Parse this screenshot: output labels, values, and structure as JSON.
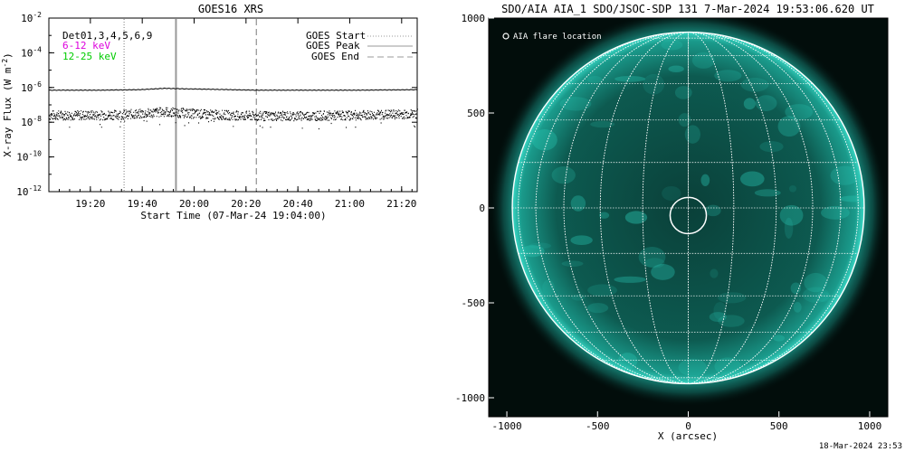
{
  "colors": {
    "background": "#ffffff",
    "axis": "#000000",
    "flux_high": "#000000",
    "legend_6_12": "#dd00dd",
    "legend_12_25": "#00cc00",
    "marker_lines": "#999999",
    "sun_dark": "#020d0b",
    "sun_cyan": "#1fb7a6",
    "grid_white": "#ffffff"
  },
  "chart_data": [
    {
      "type": "line",
      "title": "GOES16 XRS",
      "ylabel": "X-ray Flux (W m",
      "ylabel_exp": "-2",
      "ylabel_close": ")",
      "xlabel": "Start Time (07-Mar-24 19:04:00)",
      "yscale": "log",
      "ylim": [
        1e-12,
        0.01
      ],
      "xlim_minutes_after_start": [
        0,
        142
      ],
      "y_tick_labels": [
        {
          "base": "10",
          "exp": "-2",
          "value": 0.01
        },
        {
          "base": "10",
          "exp": "-4",
          "value": 0.0001
        },
        {
          "base": "10",
          "exp": "-6",
          "value": 1e-06
        },
        {
          "base": "10",
          "exp": "-8",
          "value": 1e-08
        },
        {
          "base": "10",
          "exp": "-10",
          "value": 1e-10
        },
        {
          "base": "10",
          "exp": "-12",
          "value": 1e-12
        }
      ],
      "x_tick_labels": [
        "19:20",
        "19:40",
        "20:00",
        "20:20",
        "20:40",
        "21:00",
        "21:20"
      ],
      "x_ticks_minutes_after_start": [
        16,
        36,
        56,
        76,
        96,
        116,
        136
      ],
      "series_labels": [
        "Det01,3,4,5,6,9",
        "6-12 keV",
        "12-25 keV"
      ],
      "series": [
        {
          "name": "Det01,3,4,5,6,9",
          "x_minutes": [
            0,
            20,
            35,
            45,
            50,
            60,
            70,
            80,
            100,
            120,
            142
          ],
          "y": [
            7e-07,
            7e-07,
            7.5e-07,
            9e-07,
            8.5e-07,
            8e-07,
            7.5e-07,
            7e-07,
            7e-07,
            7e-07,
            7.5e-07
          ]
        },
        {
          "name": "6-12 keV",
          "x_minutes": [
            0,
            20,
            35,
            45,
            50,
            60,
            70,
            80,
            100,
            120,
            142
          ],
          "y": [
            2.5e-08,
            2.5e-08,
            3e-08,
            4e-08,
            3.5e-08,
            2.8e-08,
            2.5e-08,
            2.2e-08,
            2.3e-08,
            2.5e-08,
            3e-08
          ]
        }
      ],
      "markers": [
        {
          "label": "GOES Start",
          "style": "dotted",
          "x_minutes": 29
        },
        {
          "label": "GOES Peak",
          "style": "solid",
          "x_minutes": 49
        },
        {
          "label": "GOES End",
          "style": "dashed",
          "x_minutes": 80
        }
      ]
    },
    {
      "type": "image",
      "title": "SDO/AIA AIA_1 SDO/JSOC-SDP 131  7-Mar-2024 19:53:06.620 UT",
      "legend": "AIA flare location",
      "xlabel": "X (arcsec)",
      "xlim": [
        -1100,
        1100
      ],
      "ylim": [
        -1100,
        1000
      ],
      "x_tick_labels": [
        "-1000",
        "-500",
        "0",
        "500",
        "1000"
      ],
      "x_ticks": [
        -1000,
        -500,
        0,
        500,
        1000
      ],
      "y_tick_labels": [
        "1000",
        "500",
        "0",
        "-500",
        "-1000"
      ],
      "y_ticks": [
        1000,
        500,
        0,
        -500,
        -1000
      ],
      "solar_radius_arcsec": 970,
      "flare_location_arcsec": [
        0,
        -40
      ],
      "flare_circle_radius_arcsec": 100
    }
  ],
  "footer_timestamp": "18-Mar-2024 23:53"
}
